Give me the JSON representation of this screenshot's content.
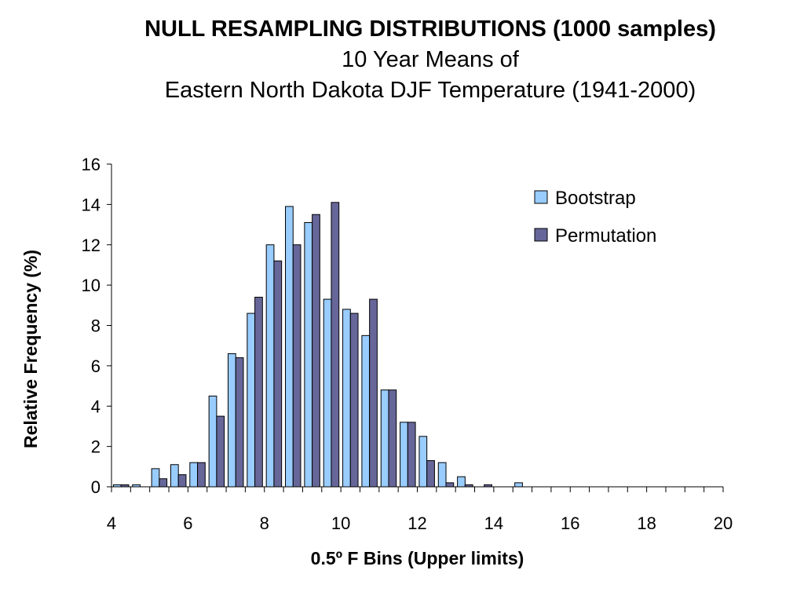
{
  "title": {
    "line1": "NULL RESAMPLING DISTRIBUTIONS (1000 samples)",
    "line2": "10 Year Means of",
    "line3": "Eastern North Dakota DJF Temperature (1941-2000)"
  },
  "chart_data": {
    "type": "bar",
    "xlabel": "0.5º F Bins (Upper limits)",
    "ylabel": "Relative Frequency (%)",
    "xlim": [
      4,
      20
    ],
    "ylim": [
      0,
      16
    ],
    "x_ticks": [
      4,
      6,
      8,
      10,
      12,
      14,
      16,
      18,
      20
    ],
    "y_ticks": [
      0,
      2,
      4,
      6,
      8,
      10,
      12,
      14,
      16
    ],
    "bin_width": 0.5,
    "x": [
      4.5,
      5,
      5.5,
      6,
      6.5,
      7,
      7.5,
      8,
      8.5,
      9,
      9.5,
      10,
      10.5,
      11,
      11.5,
      12,
      12.5,
      13,
      13.5,
      14,
      14.5,
      15
    ],
    "series": [
      {
        "name": "Bootstrap",
        "color": "#99ccff",
        "values": [
          0.1,
          0.1,
          0.9,
          1.1,
          1.2,
          4.5,
          6.6,
          8.6,
          12.0,
          13.9,
          13.1,
          9.3,
          8.8,
          7.5,
          4.8,
          3.2,
          2.5,
          1.2,
          0.5,
          0.0,
          0.0,
          0.2
        ]
      },
      {
        "name": "Permutation",
        "color": "#666699",
        "values": [
          0.1,
          0.0,
          0.4,
          0.6,
          1.2,
          3.5,
          6.4,
          9.4,
          11.2,
          12.0,
          13.5,
          14.1,
          8.6,
          9.3,
          4.8,
          3.2,
          1.3,
          0.2,
          0.1,
          0.1,
          0.0,
          0.0
        ]
      }
    ],
    "grid": false,
    "legend_position": "top-right"
  }
}
